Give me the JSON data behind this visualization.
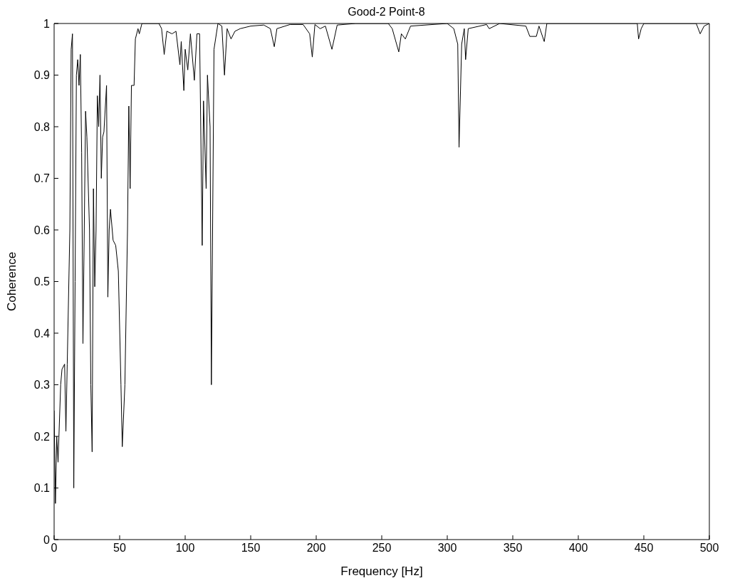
{
  "chart_data": {
    "type": "line",
    "title": "Good-2   Point-8",
    "xlabel": "Frequency  [Hz]",
    "ylabel": "Coherence",
    "xlim": [
      0,
      500
    ],
    "xticks": [
      0,
      50,
      100,
      150,
      200,
      250,
      300,
      350,
      400,
      450,
      500
    ],
    "ylim": [
      0,
      1
    ],
    "yticks": [
      0,
      0.1,
      0.2,
      0.3,
      0.4,
      0.5,
      0.6,
      0.7,
      0.8,
      0.9,
      1
    ],
    "grid": false,
    "marker": "none",
    "line_style": "solid",
    "series": [
      {
        "color": "#000000",
        "x": [
          0,
          1,
          2,
          3,
          5,
          6,
          8,
          9,
          10,
          12,
          13,
          14,
          15,
          16,
          17,
          18,
          19,
          20,
          21,
          22,
          23,
          24,
          25,
          27,
          28,
          29,
          30,
          31,
          32,
          33,
          34,
          35,
          36,
          37,
          38,
          40,
          41,
          42,
          43,
          45,
          47,
          49,
          51,
          52,
          54,
          56,
          57,
          58,
          59,
          61,
          62,
          64,
          65,
          67,
          80,
          82,
          84,
          86,
          90,
          93,
          96,
          97,
          99,
          100,
          102,
          104,
          107,
          109,
          111,
          113,
          114,
          116,
          117,
          119,
          120,
          122,
          125,
          128,
          130,
          132,
          135,
          138,
          142,
          150,
          160,
          165,
          168,
          170,
          180,
          190,
          195,
          197,
          199,
          203,
          207,
          212,
          216,
          230,
          255,
          258,
          263,
          265,
          268,
          272,
          300,
          305,
          308,
          309,
          311,
          313,
          314,
          316,
          330,
          332,
          340,
          360,
          363,
          368,
          370,
          374,
          376,
          445,
          446,
          448,
          450,
          490,
          493,
          496,
          500
        ],
        "values": [
          0.25,
          0.07,
          0.2,
          0.15,
          0.3,
          0.33,
          0.34,
          0.21,
          0.34,
          0.6,
          0.95,
          0.98,
          0.1,
          0.5,
          0.9,
          0.93,
          0.88,
          0.94,
          0.75,
          0.38,
          0.6,
          0.83,
          0.78,
          0.6,
          0.3,
          0.17,
          0.68,
          0.49,
          0.6,
          0.86,
          0.8,
          0.9,
          0.7,
          0.78,
          0.79,
          0.88,
          0.47,
          0.6,
          0.64,
          0.58,
          0.57,
          0.52,
          0.3,
          0.18,
          0.3,
          0.6,
          0.84,
          0.68,
          0.88,
          0.88,
          0.97,
          0.99,
          0.98,
          1,
          1,
          0.99,
          0.94,
          0.985,
          0.98,
          0.985,
          0.92,
          0.965,
          0.87,
          0.95,
          0.91,
          0.98,
          0.89,
          0.98,
          0.98,
          0.57,
          0.85,
          0.68,
          0.9,
          0.8,
          0.3,
          0.95,
          1,
          0.995,
          0.9,
          0.99,
          0.97,
          0.985,
          0.99,
          0.995,
          0.997,
          0.99,
          0.955,
          0.99,
          0.998,
          0.998,
          0.98,
          0.935,
          0.998,
          0.99,
          0.995,
          0.95,
          0.997,
          1,
          1,
          0.99,
          0.945,
          0.98,
          0.97,
          0.995,
          1,
          0.99,
          0.96,
          0.76,
          0.96,
          0.99,
          0.93,
          0.99,
          0.998,
          0.99,
          1,
          0.995,
          0.975,
          0.975,
          0.995,
          0.965,
          1,
          1,
          0.97,
          0.99,
          1,
          1,
          0.98,
          0.995,
          1
        ]
      }
    ]
  }
}
